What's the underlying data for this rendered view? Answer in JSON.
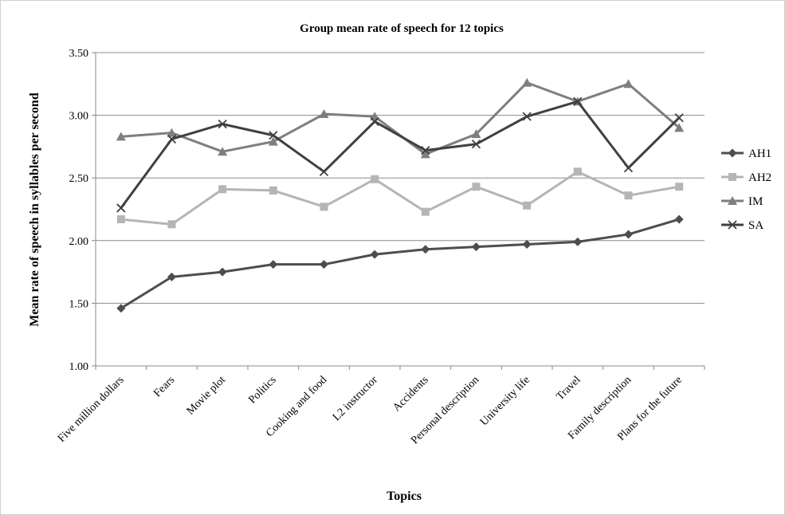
{
  "chart_data": {
    "type": "line",
    "title": "Group mean rate of speech for 12 topics",
    "xlabel": "Topics",
    "ylabel": "Mean rate of speech in  syllables per second",
    "ylim": [
      1.0,
      3.5
    ],
    "yticks": [
      "1.00",
      "1.50",
      "2.00",
      "2.50",
      "3.00",
      "3.50"
    ],
    "grid": true,
    "legend_position": "right",
    "categories": [
      "Five million dollars",
      "Fears",
      "Movie plot",
      "Politics",
      "Cooking and food",
      "L2 instructor",
      "Accidents",
      "Personal description",
      "University life",
      "Travel",
      "Family description",
      "Plans for the future"
    ],
    "series": [
      {
        "name": "AH1",
        "color": "#4d4d4d",
        "marker": "diamond",
        "values": [
          1.46,
          1.71,
          1.75,
          1.81,
          1.81,
          1.89,
          1.93,
          1.95,
          1.97,
          1.99,
          2.05,
          2.17
        ]
      },
      {
        "name": "AH2",
        "color": "#b5b5b5",
        "marker": "square",
        "values": [
          2.17,
          2.13,
          2.41,
          2.4,
          2.27,
          2.49,
          2.23,
          2.43,
          2.28,
          2.55,
          2.36,
          2.43
        ]
      },
      {
        "name": "IM",
        "color": "#7f7f7f",
        "marker": "triangle",
        "values": [
          2.83,
          2.86,
          2.71,
          2.79,
          3.01,
          2.99,
          2.69,
          2.85,
          3.26,
          3.11,
          3.25,
          2.9
        ]
      },
      {
        "name": "SA",
        "color": "#404040",
        "marker": "x",
        "values": [
          2.26,
          2.81,
          2.93,
          2.84,
          2.55,
          2.95,
          2.72,
          2.77,
          2.99,
          3.11,
          2.58,
          2.98
        ]
      }
    ]
  }
}
